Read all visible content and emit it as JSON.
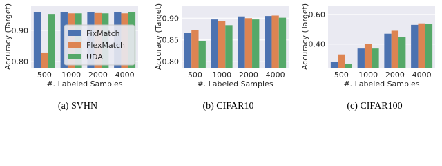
{
  "chart_data": [
    {
      "type": "bar",
      "caption": "(a) SVHN",
      "ylabel": "Accuracy (Target)",
      "xlabel": "#. Labeled Samples",
      "categories": [
        "500",
        "1000",
        "2000",
        "4000"
      ],
      "series": [
        {
          "name": "FixMatch",
          "color": "#4c72b0",
          "values": [
            0.96,
            0.96,
            0.96,
            0.96
          ]
        },
        {
          "name": "FlexMatch",
          "color": "#dd8452",
          "values": [
            0.829,
            0.955,
            0.956,
            0.955
          ]
        },
        {
          "name": "UDA",
          "color": "#55a868",
          "values": [
            0.953,
            0.955,
            0.955,
            0.96
          ]
        }
      ],
      "ylim": [
        0.78,
        0.98
      ],
      "yticks": [
        {
          "value": 0.8,
          "label": "0.80"
        },
        {
          "value": 0.9,
          "label": "0.90"
        }
      ],
      "grid": true,
      "legend": "center right"
    },
    {
      "type": "bar",
      "caption": "(b) CIFAR10",
      "ylabel": "Accuracy (Target)",
      "xlabel": "#. Labeled Samples",
      "categories": [
        "500",
        "1000",
        "2000",
        "4000"
      ],
      "series": [
        {
          "color": "#4c72b0",
          "values": [
            0.866,
            0.897,
            0.904,
            0.905
          ]
        },
        {
          "color": "#dd8452",
          "values": [
            0.872,
            0.893,
            0.9,
            0.906
          ]
        },
        {
          "color": "#55a868",
          "values": [
            0.848,
            0.884,
            0.897,
            0.901
          ]
        }
      ],
      "ylim": [
        0.786,
        0.929
      ],
      "yticks": [
        {
          "value": 0.8,
          "label": "0.80"
        },
        {
          "value": 0.85,
          "label": "0.85"
        },
        {
          "value": 0.9,
          "label": "0.90"
        }
      ],
      "grid": true
    },
    {
      "type": "bar",
      "caption": "(c) CIFAR100",
      "ylabel": "Accuracy (Target)",
      "xlabel": "#. Labeled Samples",
      "categories": [
        "500",
        "1000",
        "2000",
        "4000"
      ],
      "series": [
        {
          "color": "#4c72b0",
          "values": [
            0.28,
            0.37,
            0.47,
            0.53
          ]
        },
        {
          "color": "#dd8452",
          "values": [
            0.33,
            0.4,
            0.49,
            0.54
          ]
        },
        {
          "color": "#55a868",
          "values": [
            0.265,
            0.37,
            0.45,
            0.535
          ]
        }
      ],
      "ylim": [
        0.24,
        0.66
      ],
      "yticks": [
        {
          "value": 0.4,
          "label": "0.40"
        },
        {
          "value": 0.6,
          "label": "0.60"
        }
      ],
      "grid": true
    }
  ]
}
